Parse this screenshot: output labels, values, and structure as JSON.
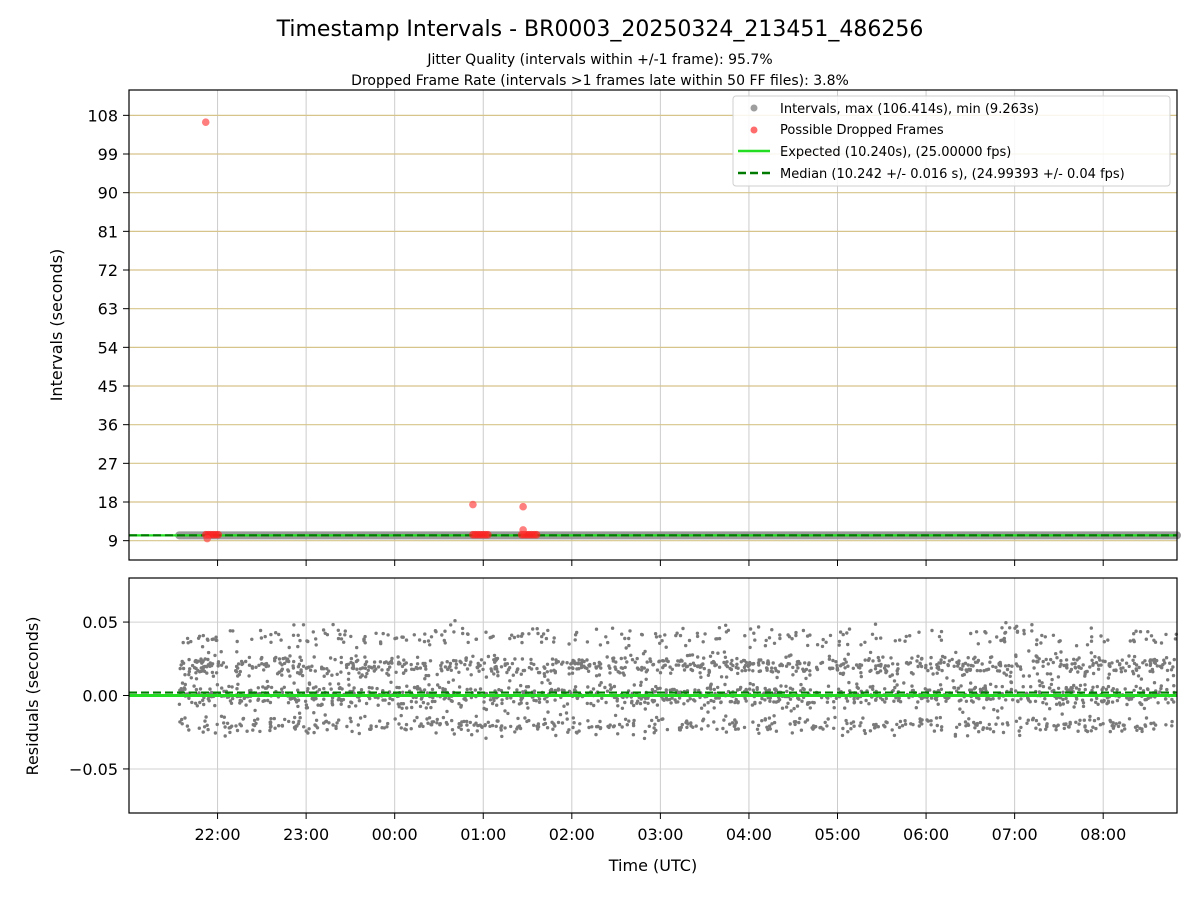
{
  "chart_data": [
    {
      "type": "scatter",
      "title": "Timestamp Intervals - BR0003_20250324_213451_486256",
      "subtitle_1": "Jitter Quality (intervals within +/-1 frame): 95.7%",
      "subtitle_2": "Dropped Frame Rate (intervals >1 frames late within 50 FF files): 3.8%",
      "xlabel": "",
      "ylabel": "Intervals (seconds)",
      "x_range": [
        "2025-03-24T21:00",
        "2025-03-25T08:50"
      ],
      "y_range": [
        4.5,
        113.9
      ],
      "y_ticks": [
        9,
        18,
        27,
        36,
        45,
        54,
        63,
        72,
        81,
        90,
        99,
        108
      ],
      "y_tick_labels": [
        "9",
        "18",
        "27",
        "36",
        "45",
        "54",
        "63",
        "72",
        "81",
        "90",
        "99",
        "108"
      ],
      "x_ticks": [
        "2025-03-24T22:00",
        "2025-03-24T23:00",
        "2025-03-25T00:00",
        "2025-03-25T01:00",
        "2025-03-25T02:00",
        "2025-03-25T03:00",
        "2025-03-25T04:00",
        "2025-03-25T05:00",
        "2025-03-25T06:00",
        "2025-03-25T07:00",
        "2025-03-25T08:00"
      ],
      "grid": true,
      "legend_position": "top-right",
      "legend": [
        {
          "label": "Intervals, max (106.414s), min (9.263s)",
          "kind": "marker",
          "color": "#9e9e9e"
        },
        {
          "label": "Possible Dropped Frames",
          "kind": "marker",
          "color": "#ff3b3b"
        },
        {
          "label": "Expected (10.240s), (25.00000 fps)",
          "kind": "line",
          "color": "#22dd22"
        },
        {
          "label": "Median (10.242 +/- 0.016 s), (24.99393 +/- 0.04 fps)",
          "kind": "dashed",
          "color": "#007a00"
        }
      ],
      "expected_interval": 10.24,
      "median_interval": 10.242,
      "interval_series": {
        "name": "Intervals",
        "x_start": "2025-03-24T21:34",
        "x_end": "2025-03-25T08:50",
        "value": 10.24
      },
      "dropped_frames": [
        {
          "x": "2025-03-24T21:52",
          "y": 106.4
        },
        {
          "x": "2025-03-24T21:53",
          "y": 9.5
        },
        {
          "x": "2025-03-25T00:53",
          "y": 17.4
        },
        {
          "x": "2025-03-25T01:27",
          "y": 16.9
        },
        {
          "x": "2025-03-25T01:27",
          "y": 11.5
        }
      ],
      "dropped_frame_clusters": [
        {
          "x_start": "2025-03-24T21:52",
          "x_end": "2025-03-24T22:02",
          "y": 10.4
        },
        {
          "x_start": "2025-03-25T00:53",
          "x_end": "2025-03-25T01:04",
          "y": 10.4
        },
        {
          "x_start": "2025-03-25T01:26",
          "x_end": "2025-03-25T01:37",
          "y": 10.4
        }
      ]
    },
    {
      "type": "scatter",
      "title": "",
      "xlabel": "Time (UTC)",
      "ylabel": "Residuals (seconds)",
      "x_range": [
        "2025-03-24T21:00",
        "2025-03-25T08:50"
      ],
      "y_range": [
        -0.08,
        0.08
      ],
      "y_ticks": [
        -0.05,
        0.0,
        0.05
      ],
      "y_tick_labels": [
        "−0.05",
        "0.00",
        "0.05"
      ],
      "x_ticks": [
        "2025-03-24T22:00",
        "2025-03-24T23:00",
        "2025-03-25T00:00",
        "2025-03-25T01:00",
        "2025-03-25T02:00",
        "2025-03-25T03:00",
        "2025-03-25T04:00",
        "2025-03-25T05:00",
        "2025-03-25T06:00",
        "2025-03-25T07:00",
        "2025-03-25T08:00"
      ],
      "x_tick_labels": [
        "22:00",
        "23:00",
        "00:00",
        "01:00",
        "02:00",
        "03:00",
        "04:00",
        "05:00",
        "06:00",
        "07:00",
        "08:00"
      ],
      "grid": true,
      "expected_residual": 0.0,
      "median_residual": 0.002,
      "residual_series": {
        "name": "Residuals",
        "x_start": "2025-03-24T21:34",
        "x_end": "2025-03-25T08:50",
        "bands": [
          {
            "center": 0.02,
            "spread": 0.004,
            "share": 0.33
          },
          {
            "center": 0.0,
            "spread": 0.004,
            "share": 0.4
          },
          {
            "center": -0.02,
            "spread": 0.003,
            "share": 0.17
          },
          {
            "center": 0.04,
            "spread": 0.004,
            "share": 0.1
          }
        ]
      },
      "colors": {
        "points": "#7a7a7a",
        "expected": "#22dd22",
        "median": "#007a00",
        "grid": "#d0d0d0"
      }
    }
  ],
  "colors": {
    "hgrid_top": "#d6c48a",
    "vgrid": "#cccccc",
    "interval_band": "#8a8a8a"
  }
}
